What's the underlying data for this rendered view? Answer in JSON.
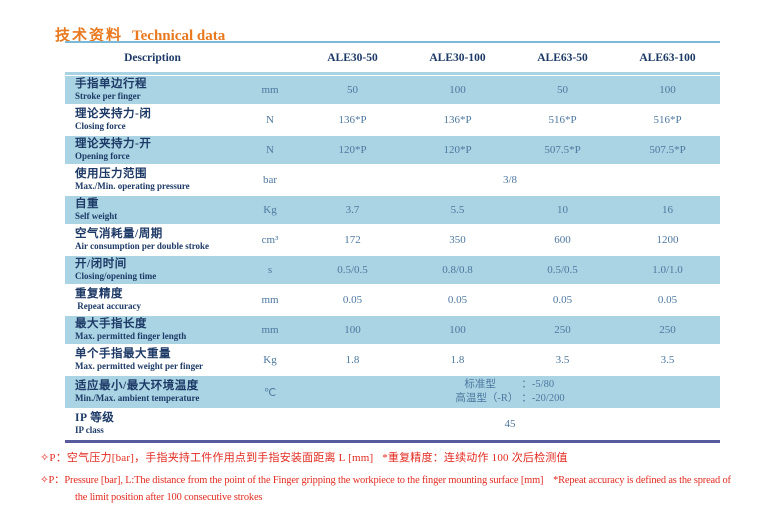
{
  "title": {
    "zh": "技术资料",
    "en": "Technical data"
  },
  "colors": {
    "accent": "#e8791e",
    "label": "#1d3a66",
    "value": "#4d789f",
    "rowblue": "#aad4e4",
    "line-top": "#7ab9d8",
    "line-head": "#a9d3e3",
    "line-bottom": "#575b9d",
    "red": "#e22b20"
  },
  "table": {
    "columns": [
      "Description",
      "ALE30-50",
      "ALE30-100",
      "ALE63-50",
      "ALE63-100"
    ],
    "rows": [
      {
        "zh": "手指单边行程",
        "en": "Stroke per finger",
        "unit": "mm",
        "values": [
          "50",
          "100",
          "50",
          "100"
        ],
        "highlight": true
      },
      {
        "zh": "理论夹持力-闭",
        "en": "Closing force",
        "unit": "N",
        "values": [
          "136*P",
          "136*P",
          "516*P",
          "516*P"
        ],
        "highlight": false
      },
      {
        "zh": "理论夹持力-开",
        "en": "Opening force",
        "unit": "N",
        "values": [
          "120*P",
          "120*P",
          "507.5*P",
          "507.5*P"
        ],
        "highlight": true
      },
      {
        "zh": "使用压力范围",
        "en": "Max./Min. operating pressure",
        "unit": "bar",
        "span": "3/8",
        "highlight": false
      },
      {
        "zh": "自重",
        "en": "Self weight",
        "unit": "Kg",
        "values": [
          "3.7",
          "5.5",
          "10",
          "16"
        ],
        "highlight": true
      },
      {
        "zh": "空气消耗量/周期",
        "en": "Air consumption per double stroke",
        "unit": "cm³",
        "values": [
          "172",
          "350",
          "600",
          "1200"
        ],
        "highlight": false
      },
      {
        "zh": "开/闭时间",
        "en": "Closing/opening time",
        "unit": "s",
        "values": [
          "0.5/0.5",
          "0.8/0.8",
          "0.5/0.5",
          "1.0/1.0"
        ],
        "highlight": true
      },
      {
        "zh": "重复精度",
        "en": " Repeat accuracy",
        "unit": "mm",
        "values": [
          "0.05",
          "0.05",
          "0.05",
          "0.05"
        ],
        "highlight": false
      },
      {
        "zh": "最大手指长度",
        "en": "Max. permitted finger length",
        "unit": "mm",
        "values": [
          "100",
          "100",
          "250",
          "250"
        ],
        "highlight": true
      },
      {
        "zh": "单个手指最大重量",
        "en": "Max. permitted weight per finger",
        "unit": "Kg",
        "values": [
          "1.8",
          "1.8",
          "3.5",
          "3.5"
        ],
        "highlight": false
      },
      {
        "zh": "适应最小/最大环境温度",
        "en": "Min./Max. ambient temperature",
        "unit": "℃",
        "temp_lines": [
          {
            "label": "标准型",
            "value": "：-5/80"
          },
          {
            "label": "高温型（-R）",
            "value": "：-20/200"
          }
        ],
        "highlight": true,
        "tall": true
      },
      {
        "zh": "IP 等级",
        "en": "IP class",
        "unit": "",
        "span": "45",
        "highlight": false
      }
    ]
  },
  "notes": [
    {
      "lang": "zh",
      "indent": false,
      "text": "✧P：空气压力[bar]，手指夹持工件作用点到手指安装面距离 L [mm]   *重复精度：连续动作 100 次后检测值"
    },
    {
      "lang": "en",
      "indent": false,
      "text": "✧P：Pressure [bar], L:The distance from the point of the Finger gripping the workpiece to the finger mounting surface [mm]    *Repeat accuracy is defined as the spread of"
    },
    {
      "lang": "en",
      "indent": true,
      "text": "the limit position after 100 consecutive strokes"
    }
  ]
}
